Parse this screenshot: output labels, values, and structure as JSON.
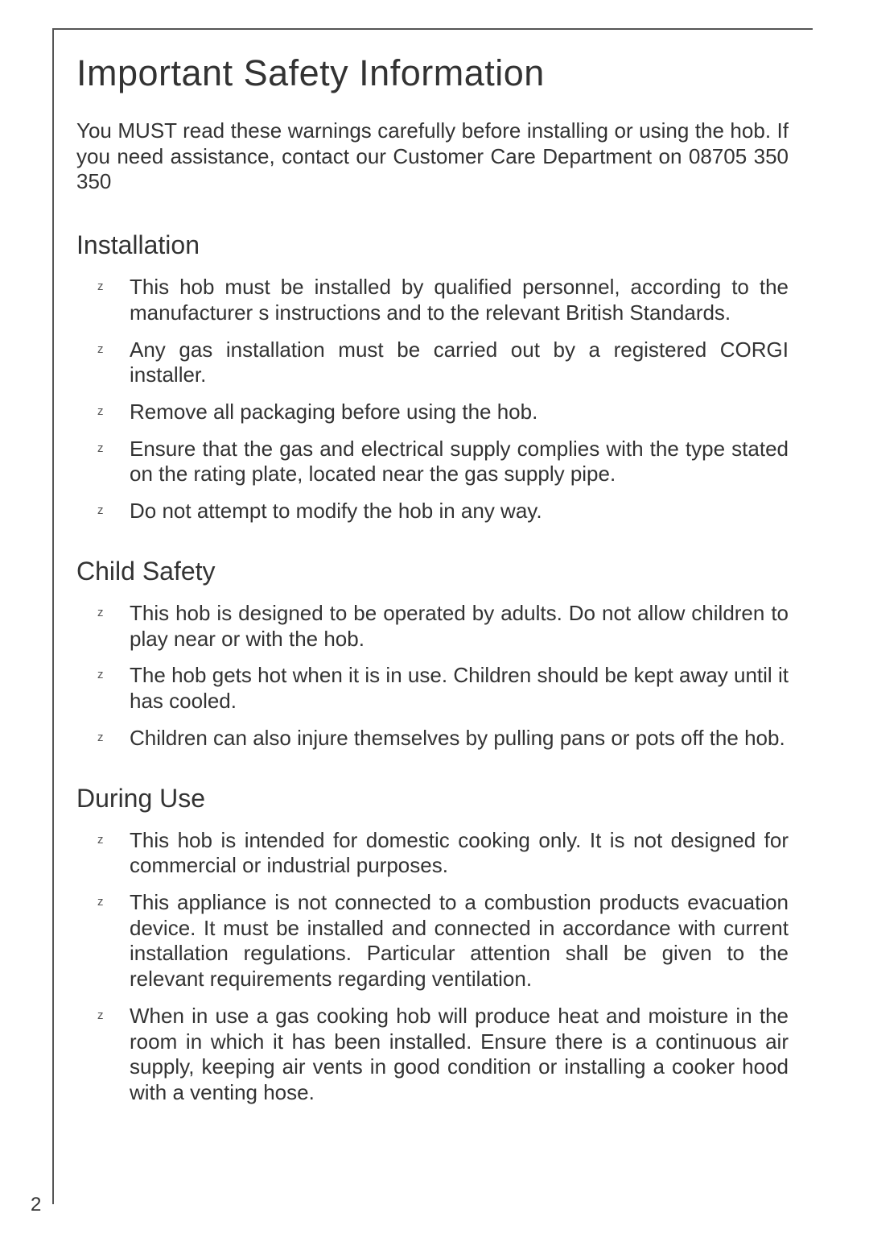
{
  "page": {
    "number": "2",
    "title": "Important Safety Information",
    "intro": "You MUST read these warnings carefully before installing or using the hob. If you need assistance, contact our Customer Care Department on 08705 350 350"
  },
  "sections": [
    {
      "heading": "Installation",
      "items": [
        "This hob must be installed by qualified personnel, according to the manufacturer s instructions and to the relevant British Standards.",
        "Any gas installation must be carried out by a registered CORGI installer.",
        "Remove all packaging before using the hob.",
        "Ensure that the gas and electrical supply complies with the type stated on the rating plate, located near the gas supply pipe.",
        "Do not attempt to modify the hob in any way."
      ]
    },
    {
      "heading": "Child Safety",
      "items": [
        "This hob is designed to be operated by adults. Do not allow children to play near or with the hob.",
        "The hob gets hot when it is in use. Children should be kept away until it has cooled.",
        "Children can also injure themselves by pulling pans or pots off the hob."
      ]
    },
    {
      "heading": "During Use",
      "items": [
        "This hob is intended for domestic cooking only. It is not designed for commercial or industrial purposes.",
        "This appliance is not connected to a combustion products evacuation device. It must be installed and connected in accordance with current installation regulations. Particular attention shall be given to the relevant requirements regarding ventilation.",
        "When in use a gas cooking hob will produce heat and moisture in the room in which it has been installed. Ensure there is a continuous air supply, keeping air vents in good condition or installing a cooker hood with a venting hose."
      ]
    }
  ]
}
